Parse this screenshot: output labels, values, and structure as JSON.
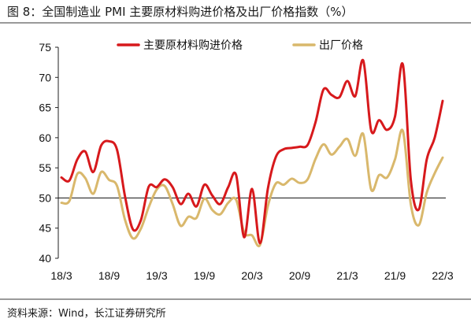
{
  "figure": {
    "title": "图 8：全国制造业 PMI 主要原材料购进价格及出厂价格指数（%）",
    "source": "资料来源：Wind，长江证券研究所"
  },
  "chart_data": {
    "type": "line",
    "title": "",
    "xlabel": "",
    "ylabel": "",
    "ylim": [
      40,
      75
    ],
    "yticks": [
      40,
      45,
      50,
      55,
      60,
      65,
      70,
      75
    ],
    "reference_line": 50,
    "grid": false,
    "legend_position": "top-center",
    "x_tick_labels": [
      "18/3",
      "18/9",
      "19/3",
      "19/9",
      "20/3",
      "20/9",
      "21/3",
      "21/9",
      "22/3"
    ],
    "x": [
      "18/3",
      "18/4",
      "18/5",
      "18/6",
      "18/7",
      "18/8",
      "18/9",
      "18/10",
      "18/11",
      "18/12",
      "19/1",
      "19/2",
      "19/3",
      "19/4",
      "19/5",
      "19/6",
      "19/7",
      "19/8",
      "19/9",
      "19/10",
      "19/11",
      "19/12",
      "20/1",
      "20/2",
      "20/3",
      "20/4",
      "20/5",
      "20/6",
      "20/7",
      "20/8",
      "20/9",
      "20/10",
      "20/11",
      "20/12",
      "21/1",
      "21/2",
      "21/3",
      "21/4",
      "21/5",
      "21/6",
      "21/7",
      "21/8",
      "21/9",
      "21/10",
      "21/11",
      "21/12",
      "22/1",
      "22/2",
      "22/3"
    ],
    "series": [
      {
        "name": "主要原材料购进价格",
        "color": "#d7191c",
        "values": [
          53.4,
          52.9,
          56.4,
          57.7,
          54.3,
          58.7,
          59.4,
          58.0,
          50.3,
          44.8,
          46.3,
          51.9,
          51.8,
          53.1,
          51.8,
          49.0,
          50.7,
          48.6,
          52.2,
          50.4,
          49.0,
          51.8,
          53.8,
          43.5,
          51.5,
          42.5,
          51.6,
          56.8,
          58.1,
          58.3,
          58.5,
          58.8,
          62.6,
          68.0,
          67.1,
          66.7,
          69.4,
          66.9,
          72.8,
          61.2,
          62.9,
          61.3,
          63.5,
          72.1,
          52.9,
          48.1,
          56.4,
          60.0,
          66.1
        ]
      },
      {
        "name": "出厂价格",
        "color": "#d9b86c",
        "values": [
          49.2,
          49.5,
          54.0,
          53.3,
          50.7,
          54.3,
          53.0,
          52.0,
          46.4,
          43.3,
          44.9,
          48.5,
          51.4,
          52.0,
          49.0,
          45.4,
          46.9,
          46.7,
          49.9,
          48.0,
          47.3,
          49.2,
          49.7,
          44.3,
          43.8,
          42.2,
          48.7,
          52.4,
          52.2,
          53.2,
          52.5,
          53.1,
          56.5,
          58.9,
          57.2,
          58.5,
          59.8,
          57.0,
          60.6,
          51.4,
          53.8,
          53.4,
          56.4,
          61.1,
          48.9,
          45.5,
          50.9,
          54.1,
          56.7
        ]
      }
    ]
  }
}
